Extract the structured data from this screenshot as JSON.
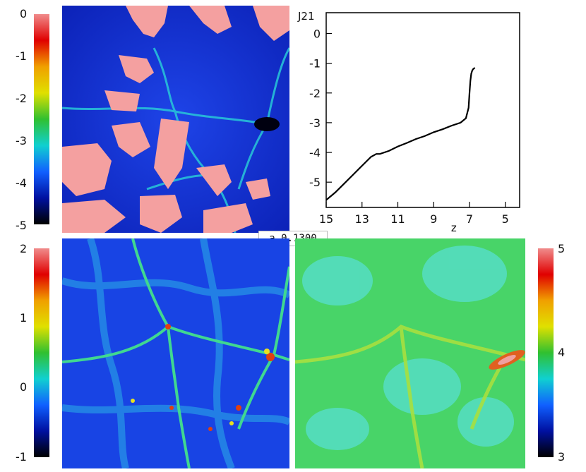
{
  "time_label": "a 0.1300",
  "colorbars": {
    "top_left": {
      "ticks": [
        "0",
        "-1",
        "-2",
        "-3",
        "-4",
        "-5"
      ],
      "gradient": [
        "#f08c8c",
        "#e00000",
        "#f0a000",
        "#e0e000",
        "#30c030",
        "#10d0d0",
        "#1060ff",
        "#0010a0",
        "#000000"
      ]
    },
    "bottom_left": {
      "ticks": [
        "2",
        "1",
        "0",
        "-1"
      ],
      "gradient": [
        "#f08c8c",
        "#e00000",
        "#f0a000",
        "#e0e000",
        "#30c030",
        "#10d0d0",
        "#1060ff",
        "#0010a0",
        "#000000"
      ]
    },
    "right": {
      "ticks": [
        "5",
        "4",
        "3"
      ],
      "gradient": [
        "#f08c8c",
        "#e00000",
        "#f0a000",
        "#e0e000",
        "#30c030",
        "#10d0d0",
        "#1060ff",
        "#0010a0",
        "#000000"
      ]
    }
  },
  "panels": {
    "top_left_map": {
      "base": "#1530d8",
      "accent": "#f4a0a0",
      "filament": "#20d0d0"
    },
    "bottom_left_map": {
      "base": "#1840e0",
      "accent": "#e8e820",
      "filament": "#40d8c8"
    },
    "bottom_right_map": {
      "base": "#40d060",
      "accent": "#e85020",
      "filament": "#b0e840"
    }
  },
  "chart_data": {
    "type": "line",
    "ylabel": "J21",
    "xlabel": "z",
    "xlim": [
      15,
      4.2
    ],
    "ylim": [
      -5.85,
      0.7
    ],
    "xticks": [
      "15",
      "13",
      "11",
      "9",
      "7",
      "5"
    ],
    "xtick_values": [
      15,
      13,
      11,
      9,
      7,
      5
    ],
    "yticks": [
      "0",
      "-1",
      "-2",
      "-3",
      "-4",
      "-5"
    ],
    "ytick_values": [
      0,
      -1,
      -2,
      -3,
      -4,
      -5
    ],
    "series": [
      {
        "x": [
          15,
          14.5,
          14,
          13.5,
          13,
          12.5,
          12.2,
          12,
          11.5,
          11,
          10.5,
          10,
          9.5,
          9,
          8.5,
          8,
          7.5,
          7.2,
          7.05,
          7.0,
          6.95,
          6.9,
          6.85,
          6.8,
          6.7
        ],
        "y": [
          -5.6,
          -5.35,
          -5.05,
          -4.75,
          -4.45,
          -4.15,
          -4.05,
          -4.05,
          -3.95,
          -3.8,
          -3.68,
          -3.55,
          -3.45,
          -3.32,
          -3.22,
          -3.1,
          -3.0,
          -2.85,
          -2.5,
          -2.0,
          -1.6,
          -1.35,
          -1.25,
          -1.2,
          -1.15
        ]
      }
    ]
  }
}
